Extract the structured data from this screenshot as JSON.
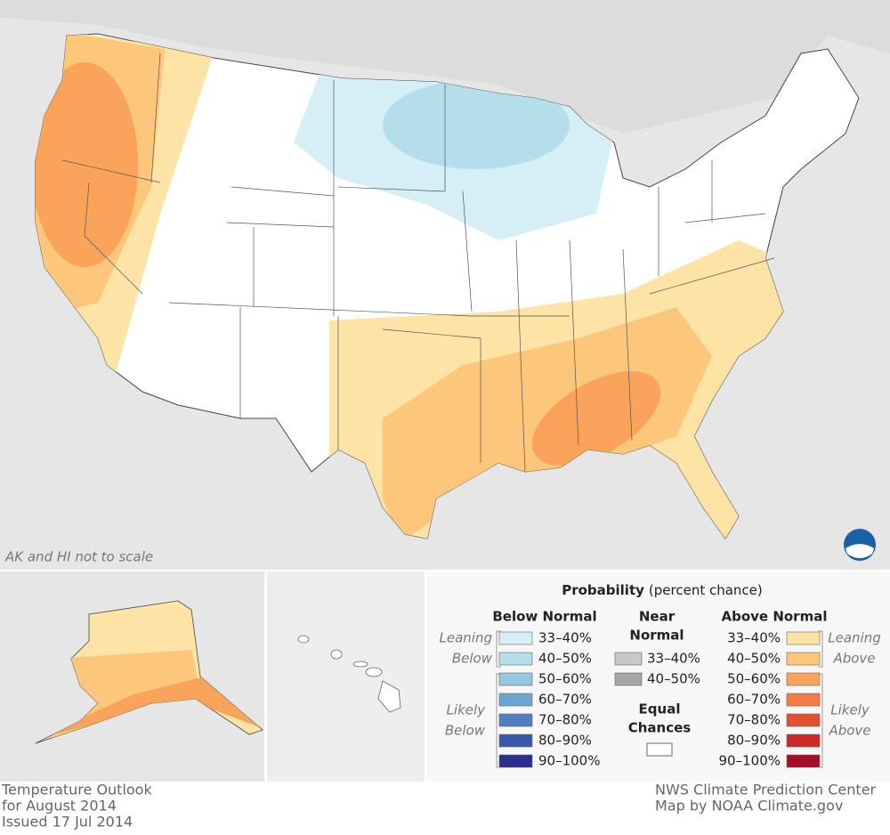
{
  "map": {
    "note": "AK and HI not to scale"
  },
  "legend": {
    "title": "Probability",
    "title_note": "(percent chance)",
    "below": {
      "heading": [
        "Below Normal"
      ],
      "items": [
        {
          "label": "33–40%",
          "color": "#d6eef6"
        },
        {
          "label": "40–50%",
          "color": "#b5deed"
        },
        {
          "label": "50–60%",
          "color": "#93c8e0"
        },
        {
          "label": "60–70%",
          "color": "#6ba6d3"
        },
        {
          "label": "70–80%",
          "color": "#4f7fc1"
        },
        {
          "label": "80–90%",
          "color": "#3b57aa"
        },
        {
          "label": "90–100%",
          "color": "#2a2e8c"
        }
      ],
      "leaning": [
        "Leaning",
        "Below"
      ],
      "likely": [
        "Likely",
        "Below"
      ]
    },
    "near": {
      "heading": [
        "Near",
        "Normal"
      ],
      "items": [
        {
          "label": "33–40%",
          "color": "#c8c8c8"
        },
        {
          "label": "40–50%",
          "color": "#a6a6a6"
        }
      ]
    },
    "equal": {
      "heading": [
        "Equal",
        "Chances"
      ],
      "color": "#ffffff"
    },
    "above": {
      "heading": [
        "Above Normal"
      ],
      "items": [
        {
          "label": "33–40%",
          "color": "#fde4a6"
        },
        {
          "label": "40–50%",
          "color": "#fcc77b"
        },
        {
          "label": "50–60%",
          "color": "#f9a45a"
        },
        {
          "label": "60–70%",
          "color": "#f47c46"
        },
        {
          "label": "70–80%",
          "color": "#e3502f"
        },
        {
          "label": "80–90%",
          "color": "#cc2a27"
        },
        {
          "label": "90–100%",
          "color": "#a50e26"
        }
      ],
      "leaning": [
        "Leaning",
        "Above"
      ],
      "likely": [
        "Likely",
        "Above"
      ]
    }
  },
  "footer": {
    "left": [
      "Temperature Outlook",
      "for August 2014",
      "Issued 17 Jul 2014"
    ],
    "right": [
      "NWS Climate Prediction Center",
      "Map by NOAA Climate.gov"
    ]
  }
}
